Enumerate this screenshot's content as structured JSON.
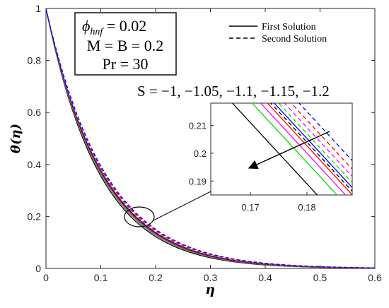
{
  "chart_data": {
    "type": "line",
    "title": "",
    "xlabel": "η",
    "ylabel": "θ(η)",
    "xlim": [
      0,
      0.6
    ],
    "ylim": [
      0,
      1
    ],
    "x_ticks": [
      "0",
      "0.1",
      "0.2",
      "0.3",
      "0.4",
      "0.5",
      "0.6"
    ],
    "y_ticks": [
      "0",
      "0.2",
      "0.4",
      "0.6",
      "0.8",
      "1"
    ],
    "grid": false,
    "legend_position": "top-right",
    "legend": [
      {
        "label": "First Solution",
        "style": "solid"
      },
      {
        "label": "Second Solution",
        "style": "dashed"
      }
    ],
    "parameter_box": {
      "line1_symbol": "ϕ",
      "line1_subscript": "hnf",
      "line1_value": " = 0.02",
      "line2": "M = B = 0.2",
      "line3": "Pr = 30"
    },
    "annotation": "S = −1, −1.05, −1.1, −1.15, −1.2",
    "series": [
      {
        "style": "solid",
        "color": "#000000",
        "decay_rate": 10.2
      },
      {
        "style": "solid",
        "color": "#00dd00",
        "decay_rate": 10.0
      },
      {
        "style": "solid",
        "color": "#ff00ff",
        "decay_rate": 9.85
      },
      {
        "style": "solid",
        "color": "#ff0000",
        "decay_rate": 9.72
      },
      {
        "style": "solid",
        "color": "#0000ff",
        "decay_rate": 9.6
      },
      {
        "style": "dashed",
        "color": "#000000",
        "decay_rate": 9.62
      },
      {
        "style": "dashed",
        "color": "#00dd00",
        "decay_rate": 9.5
      },
      {
        "style": "dashed",
        "color": "#ff00ff",
        "decay_rate": 9.4
      },
      {
        "style": "dashed",
        "color": "#ff0000",
        "decay_rate": 9.28
      },
      {
        "style": "dashed",
        "color": "#0000ff",
        "decay_rate": 9.15
      }
    ],
    "inset": {
      "xlim": [
        0.163,
        0.188
      ],
      "ylim": [
        0.185,
        0.218
      ],
      "x_ticks": [
        "0.17",
        "0.18"
      ],
      "y_ticks": [
        "0.19",
        "0.2",
        "0.21"
      ],
      "magnified_point": {
        "x": 0.175,
        "y": 0.2
      }
    }
  }
}
